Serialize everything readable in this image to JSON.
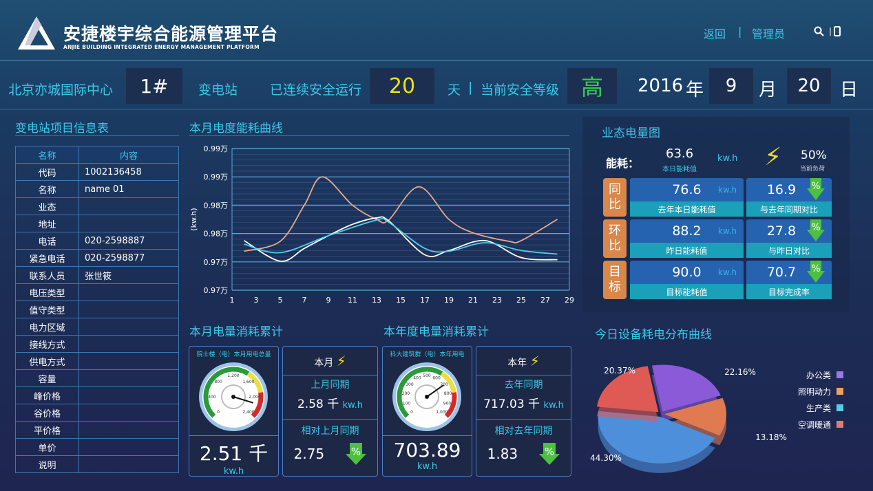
{
  "header": {
    "title": "安捷楼宇综合能源管理平台",
    "subtitle": "ANJIE BUILDING INTEGRATED ENERGY MANAGEMENT PLATFORM",
    "nav_back": "返回",
    "nav_sep": "|",
    "nav_admin": "管理员",
    "icons": [
      "search-icon",
      "phone-icon"
    ]
  },
  "infobar": {
    "site": "北京亦城国际中心",
    "building": "1#",
    "station": "变电站",
    "safe_label": "已连续安全运行",
    "safe_days": "20",
    "day_unit": "天",
    "sep": "|",
    "level_label": "当前安全等级",
    "level": "高",
    "year": "2016",
    "year_unit": "年",
    "month": "9",
    "month_unit": "月",
    "day": "20",
    "day_unit2": "日"
  },
  "info_table": {
    "title": "变电站项目信息表",
    "headers": [
      "名称",
      "内容"
    ],
    "rows": [
      [
        "代码",
        "1002136458"
      ],
      [
        "名称",
        "name 01"
      ],
      [
        "业态",
        ""
      ],
      [
        "地址",
        ""
      ],
      [
        "电话",
        "020-2598887"
      ],
      [
        "紧急电话",
        "020-2598877"
      ],
      [
        "联系人员",
        "张世筱"
      ],
      [
        "电压类型",
        ""
      ],
      [
        "值守类型",
        ""
      ],
      [
        "电力区域",
        ""
      ],
      [
        "接线方式",
        ""
      ],
      [
        "供电方式",
        ""
      ],
      [
        "容量",
        ""
      ],
      [
        "峰价格",
        ""
      ],
      [
        "谷价格",
        ""
      ],
      [
        "平价格",
        ""
      ],
      [
        "单价",
        ""
      ],
      [
        "说明",
        ""
      ]
    ]
  },
  "chart_data": [
    {
      "type": "line",
      "title": "本月电度能耗曲线",
      "ylabel": "(kw.h)",
      "xlabel": "",
      "ylim": [
        0.97,
        0.99
      ],
      "yticks": [
        0.97,
        0.974,
        0.978,
        0.982,
        0.986,
        0.99
      ],
      "ytick_labels": [
        "0.97万",
        "0.97万",
        "0.98万",
        "0.98万",
        "0.99万",
        "0.99万"
      ],
      "xlim": [
        1,
        29
      ],
      "xticks": [
        1,
        3,
        5,
        7,
        9,
        11,
        13,
        15,
        17,
        19,
        21,
        23,
        25,
        27,
        29
      ],
      "grid": true,
      "series": [
        {
          "color": "#e9a98a",
          "x": [
            2,
            5,
            7,
            8.5,
            11,
            13,
            14,
            16.5,
            19,
            21,
            24,
            25,
            28
          ],
          "y": [
            0.9755,
            0.9769,
            0.982,
            0.986,
            0.982,
            0.98,
            0.9799,
            0.9846,
            0.98,
            0.9781,
            0.9769,
            0.977,
            0.98
          ]
        },
        {
          "color": "#ffffff",
          "x": [
            2,
            5,
            7,
            9,
            11,
            13,
            14,
            17,
            19,
            22,
            25,
            28
          ],
          "y": [
            0.977,
            0.9741,
            0.9759,
            0.9777,
            0.9793,
            0.9802,
            0.9798,
            0.975,
            0.9756,
            0.977,
            0.9746,
            0.9743
          ]
        },
        {
          "color": "#4fd0ec",
          "x": [
            2,
            5,
            9,
            13,
            14,
            17,
            19,
            22,
            25,
            28
          ],
          "y": [
            0.9765,
            0.9753,
            0.9777,
            0.9799,
            0.9796,
            0.9759,
            0.9755,
            0.9767,
            0.9756,
            0.9751
          ]
        }
      ]
    },
    {
      "type": "pie",
      "title": "今日设备耗电分布曲线",
      "legend": "right",
      "slices": [
        {
          "name": "办公类",
          "value": 22.16,
          "label": "22.16%",
          "color": "#8a5ad8"
        },
        {
          "name": "照明动力",
          "value": 13.18,
          "label": "13.18%",
          "color": "#e07a50"
        },
        {
          "name": "生产类",
          "value": 44.3,
          "label": "44.30%",
          "color": "#4e8fdc"
        },
        {
          "name": "空调暖通",
          "value": 20.37,
          "label": "20.37%",
          "color": "#e05a55"
        }
      ],
      "legend_colors": [
        "#9a78e8",
        "#f0a060",
        "#50d0e8",
        "#e87878"
      ]
    }
  ],
  "monthly": {
    "title": "本月电量消耗累计",
    "gauge_title": "院士楼（电）本月用电总量",
    "gauge_ticks": [
      "0",
      "400",
      "800",
      "1,200",
      "1,600",
      "2,000",
      "2,400"
    ],
    "gauge_value": 2510,
    "gauge_max": 2800,
    "total": "2.51 千",
    "unit": "kw.h",
    "period": "本月",
    "same_label": "上月同期",
    "same_value": "2.58 千",
    "same_unit": "kw.h",
    "rel_label": "相对上月同期",
    "rel_value": "2.75"
  },
  "yearly": {
    "title": "本年度电量消耗累计",
    "gauge_title": "科大建筑群（电）本年用电",
    "gauge_ticks": [
      "0",
      "100",
      "200",
      "300",
      "400",
      "500",
      "600",
      "700",
      "800",
      "900",
      "1,000"
    ],
    "gauge_value": 703.89,
    "gauge_max": 1000,
    "total": "703.89",
    "unit": "kw.h",
    "period": "本年",
    "same_label": "去年同期",
    "same_value": "717.03 千",
    "same_unit": "kw.h",
    "rel_label": "相对去年同期",
    "rel_value": "1.83"
  },
  "status": {
    "title": "业态电量图",
    "energy_label": "能耗：",
    "today_value": "63.6",
    "today_label": "本日能耗值",
    "unit": "kw.h",
    "load_value": "50%",
    "load_label": "当前负荷",
    "rows": [
      {
        "tag": [
          "同",
          "比"
        ],
        "value": "76.6",
        "label": "去年本日能耗值",
        "pct": "16.9",
        "pct_label": "与去年同期对比"
      },
      {
        "tag": [
          "环",
          "比"
        ],
        "value": "88.2",
        "label": "昨日能耗值",
        "pct": "27.8",
        "pct_label": "与昨日对比"
      },
      {
        "tag": [
          "目",
          "标"
        ],
        "value": "90.0",
        "label": "目标能耗值",
        "pct": "70.7",
        "pct_label": "目标完成率"
      }
    ]
  },
  "colors": {
    "accent": "#3cc8e8",
    "yellow": "#f0e020",
    "green": "#30d050",
    "tag": "#d9874a",
    "down_arrow": "#4cc040"
  }
}
